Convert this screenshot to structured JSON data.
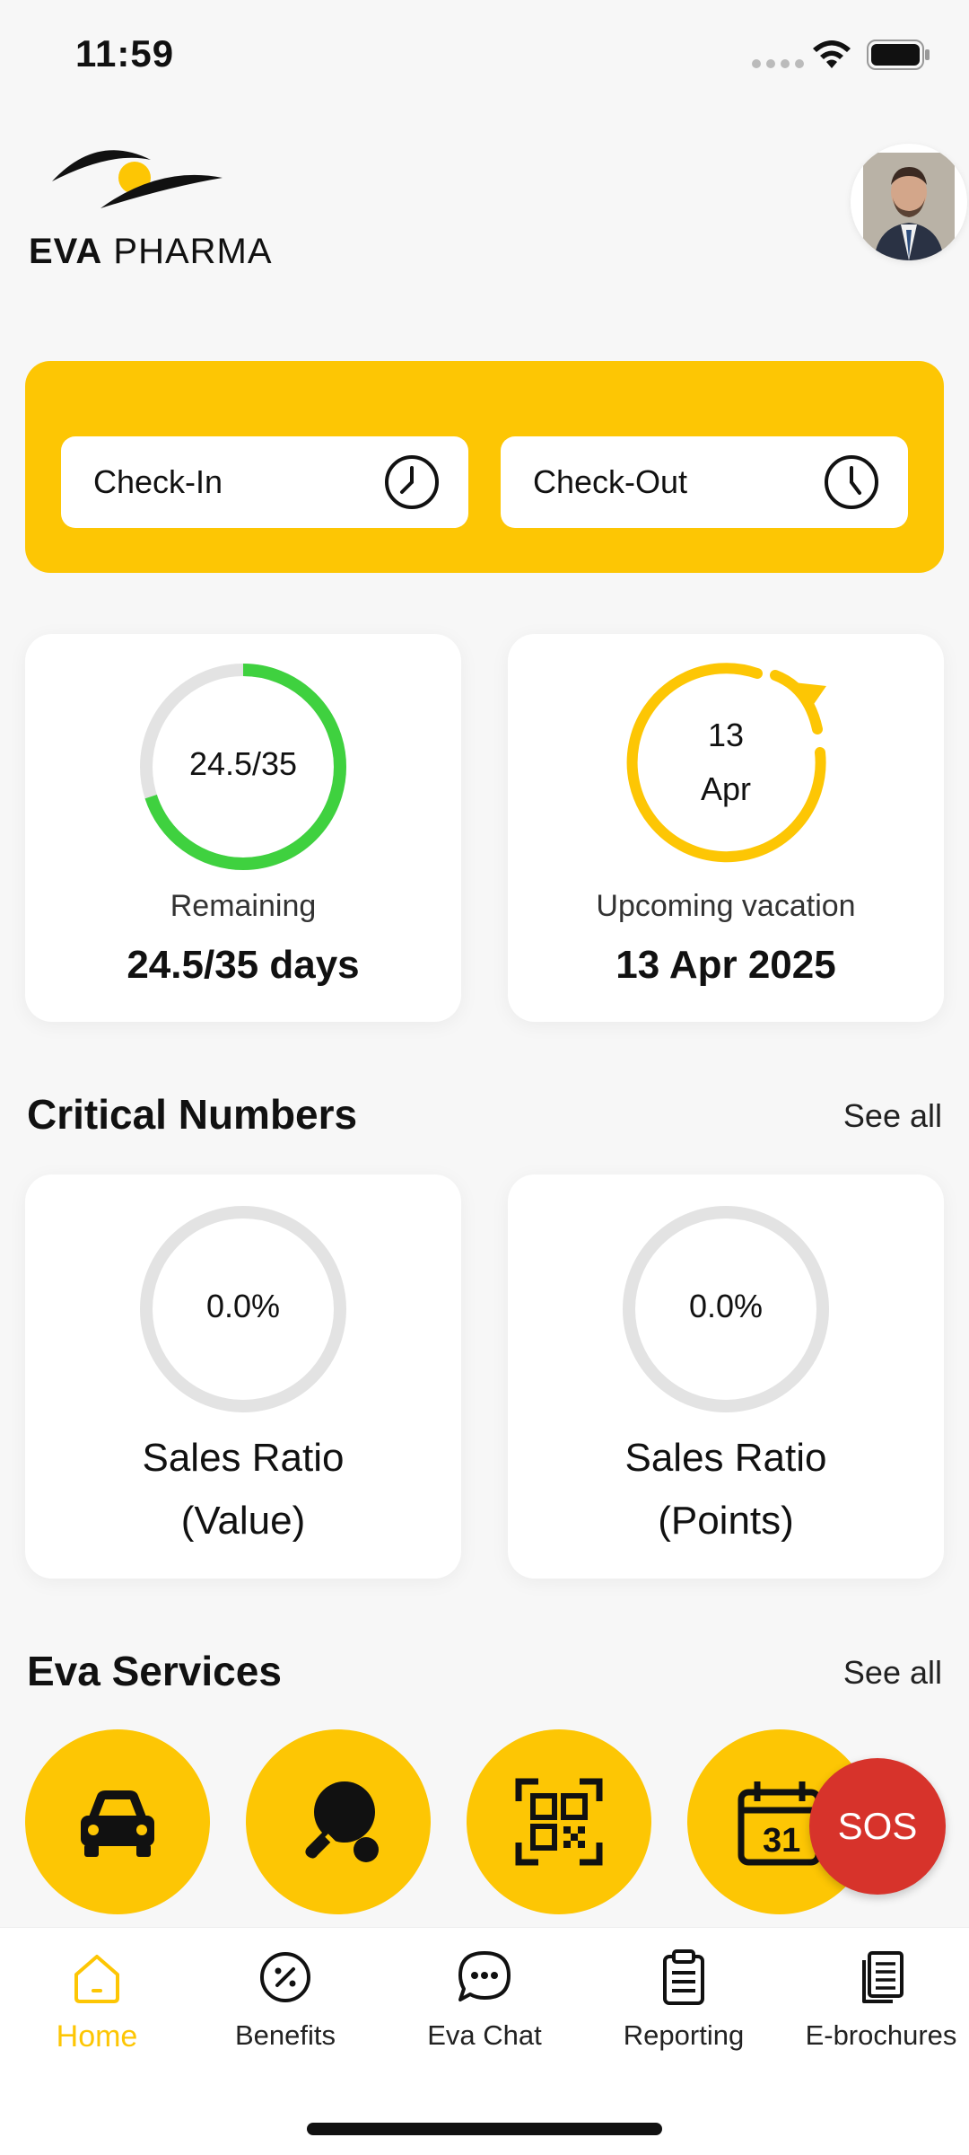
{
  "status": {
    "time": "11:59"
  },
  "brand": {
    "name_bold": "EVA",
    "name_rest": " PHARMA"
  },
  "attendance": {
    "checkin_label": "Check-In",
    "checkout_label": "Check-Out"
  },
  "vacation": {
    "remaining_ring": "24.5/35",
    "remaining_fraction": 0.7,
    "remaining_label": "Remaining",
    "remaining_value": "24.5/35 days",
    "upcoming_day": "13",
    "upcoming_month": "Apr",
    "upcoming_label": "Upcoming vacation",
    "upcoming_value": "13 Apr 2025"
  },
  "critical_numbers": {
    "title": "Critical Numbers",
    "see_all": "See all",
    "items": [
      {
        "value": "0.0%",
        "line1": "Sales Ratio",
        "line2": "(Value)"
      },
      {
        "value": "0.0%",
        "line1": "Sales Ratio",
        "line2": "(Points)"
      }
    ]
  },
  "services": {
    "title": "Eva Services",
    "see_all": "See all",
    "icons": [
      "car-icon",
      "ping-pong-icon",
      "qr-code-icon",
      "calendar-31-icon"
    ],
    "sos_label": "SOS"
  },
  "nav": {
    "items": [
      {
        "label": "Home",
        "icon": "home-icon",
        "active": true
      },
      {
        "label": "Benefits",
        "icon": "percent-badge-icon"
      },
      {
        "label": "Eva Chat",
        "icon": "chat-bubble-icon"
      },
      {
        "label": "Reporting",
        "icon": "clipboard-icon"
      },
      {
        "label": "E-brochures",
        "icon": "documents-icon"
      }
    ]
  },
  "colors": {
    "accent": "#fdc604",
    "ring_green": "#3fd13f",
    "ring_track": "#e3e3e3",
    "sos": "#d7332b"
  }
}
